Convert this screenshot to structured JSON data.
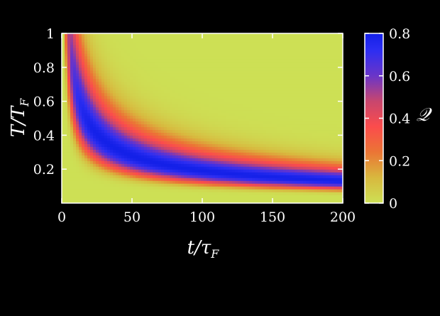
{
  "chart_data": {
    "type": "heatmap",
    "xlabel": "t/τ_F",
    "xlabel_main": "t/τ",
    "xlabel_sub": "F",
    "ylabel": "T/T_F",
    "ylabel_main": "T/T",
    "ylabel_sub": "F",
    "colorbar_label": "𝒬",
    "xlim": [
      0,
      200
    ],
    "ylim": [
      0,
      1
    ],
    "x_ticks": [
      0,
      50,
      100,
      150,
      200
    ],
    "x_tick_labels": [
      "0",
      "50",
      "100",
      "150",
      "200"
    ],
    "y_ticks": [
      0.2,
      0.4,
      0.6,
      0.8,
      1
    ],
    "y_tick_labels": [
      "0.2",
      "0.4",
      "0.6",
      "0.8",
      "1"
    ],
    "colorbar_range": [
      0,
      0.8
    ],
    "colorbar_ticks": [
      0,
      0.2,
      0.4,
      0.6,
      0.8
    ],
    "colorbar_tick_labels": [
      "0",
      "0.2",
      "0.4",
      "0.6",
      "0.8"
    ],
    "colormap": [
      {
        "value": 0.0,
        "color": "#cde055"
      },
      {
        "value": 0.12,
        "color": "#d8b83e"
      },
      {
        "value": 0.24,
        "color": "#eb7535"
      },
      {
        "value": 0.36,
        "color": "#fb4c4c"
      },
      {
        "value": 0.48,
        "color": "#c8466e"
      },
      {
        "value": 0.6,
        "color": "#6a35c8"
      },
      {
        "value": 0.72,
        "color": "#2d2ef2"
      },
      {
        "value": 0.8,
        "color": "#1320e8"
      }
    ],
    "ridge_points": [
      {
        "t": 5,
        "T": 0.9
      },
      {
        "t": 20,
        "T": 0.5
      },
      {
        "t": 50,
        "T": 0.3
      },
      {
        "t": 100,
        "T": 0.2
      },
      {
        "t": 200,
        "T": 0.12
      }
    ],
    "max_value": 0.8,
    "grid": false
  }
}
